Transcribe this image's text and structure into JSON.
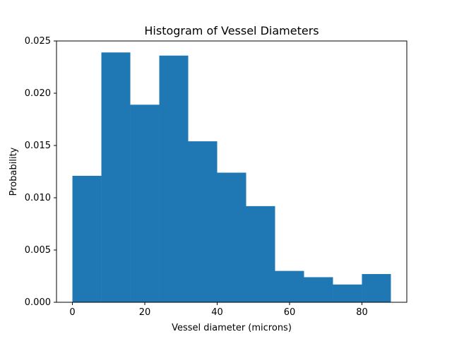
{
  "chart_data": {
    "type": "histogram",
    "title": "Histogram of Vessel Diameters",
    "xlabel": "Vessel diameter (microns)",
    "ylabel": "Probability",
    "bin_edges": [
      0,
      8,
      16,
      24,
      32,
      40,
      48,
      56,
      64,
      72,
      80,
      88
    ],
    "values": [
      0.0121,
      0.0239,
      0.0189,
      0.0236,
      0.0154,
      0.0124,
      0.0092,
      0.003,
      0.0024,
      0.0017,
      0.0027
    ],
    "xlim": [
      -4.4,
      92.4
    ],
    "ylim": [
      0,
      0.025
    ],
    "xticks": [
      0,
      20,
      40,
      60,
      80
    ],
    "xtick_labels": [
      "0",
      "20",
      "40",
      "60",
      "80"
    ],
    "yticks": [
      0,
      0.005,
      0.01,
      0.015,
      0.02,
      0.025
    ],
    "ytick_labels": [
      "0.000",
      "0.005",
      "0.010",
      "0.015",
      "0.020",
      "0.025"
    ],
    "bar_color": "#1f77b4",
    "grid": false
  }
}
